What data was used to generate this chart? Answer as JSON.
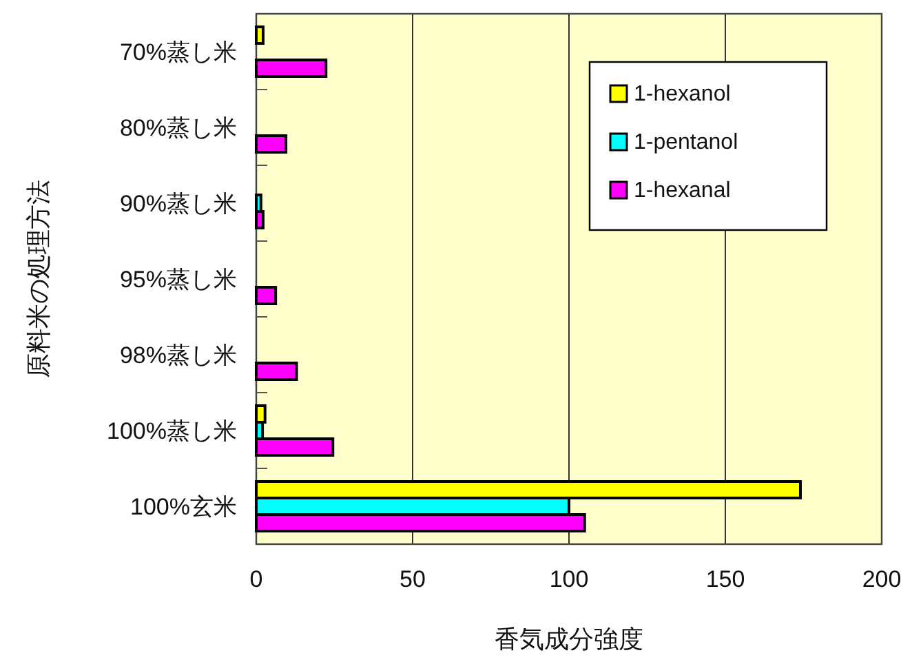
{
  "chart_data": {
    "type": "bar",
    "orientation": "horizontal",
    "xlabel": "香気成分強度",
    "ylabel": "原料米の処理方法",
    "categories": [
      "70%蒸し米",
      "80%蒸し米",
      "90%蒸し米",
      "95%蒸し米",
      "98%蒸し米",
      "100%蒸し米",
      "100%玄米"
    ],
    "series": [
      {
        "name": "1-hexanol",
        "color": "#ffff00",
        "values": [
          2.2,
          null,
          null,
          null,
          null,
          2.8,
          174
        ]
      },
      {
        "name": "1-pentanol",
        "color": "#00ffff",
        "values": [
          null,
          null,
          1.5,
          null,
          null,
          2.0,
          100
        ]
      },
      {
        "name": "1-hexanal",
        "color": "#ff00ff",
        "values": [
          22.3,
          9.5,
          2.2,
          6.2,
          12.9,
          24.5,
          105
        ]
      }
    ],
    "xlim": [
      0,
      200
    ],
    "xticks": [
      0,
      50,
      100,
      150,
      200
    ],
    "grid": "x",
    "legend": "top right"
  }
}
